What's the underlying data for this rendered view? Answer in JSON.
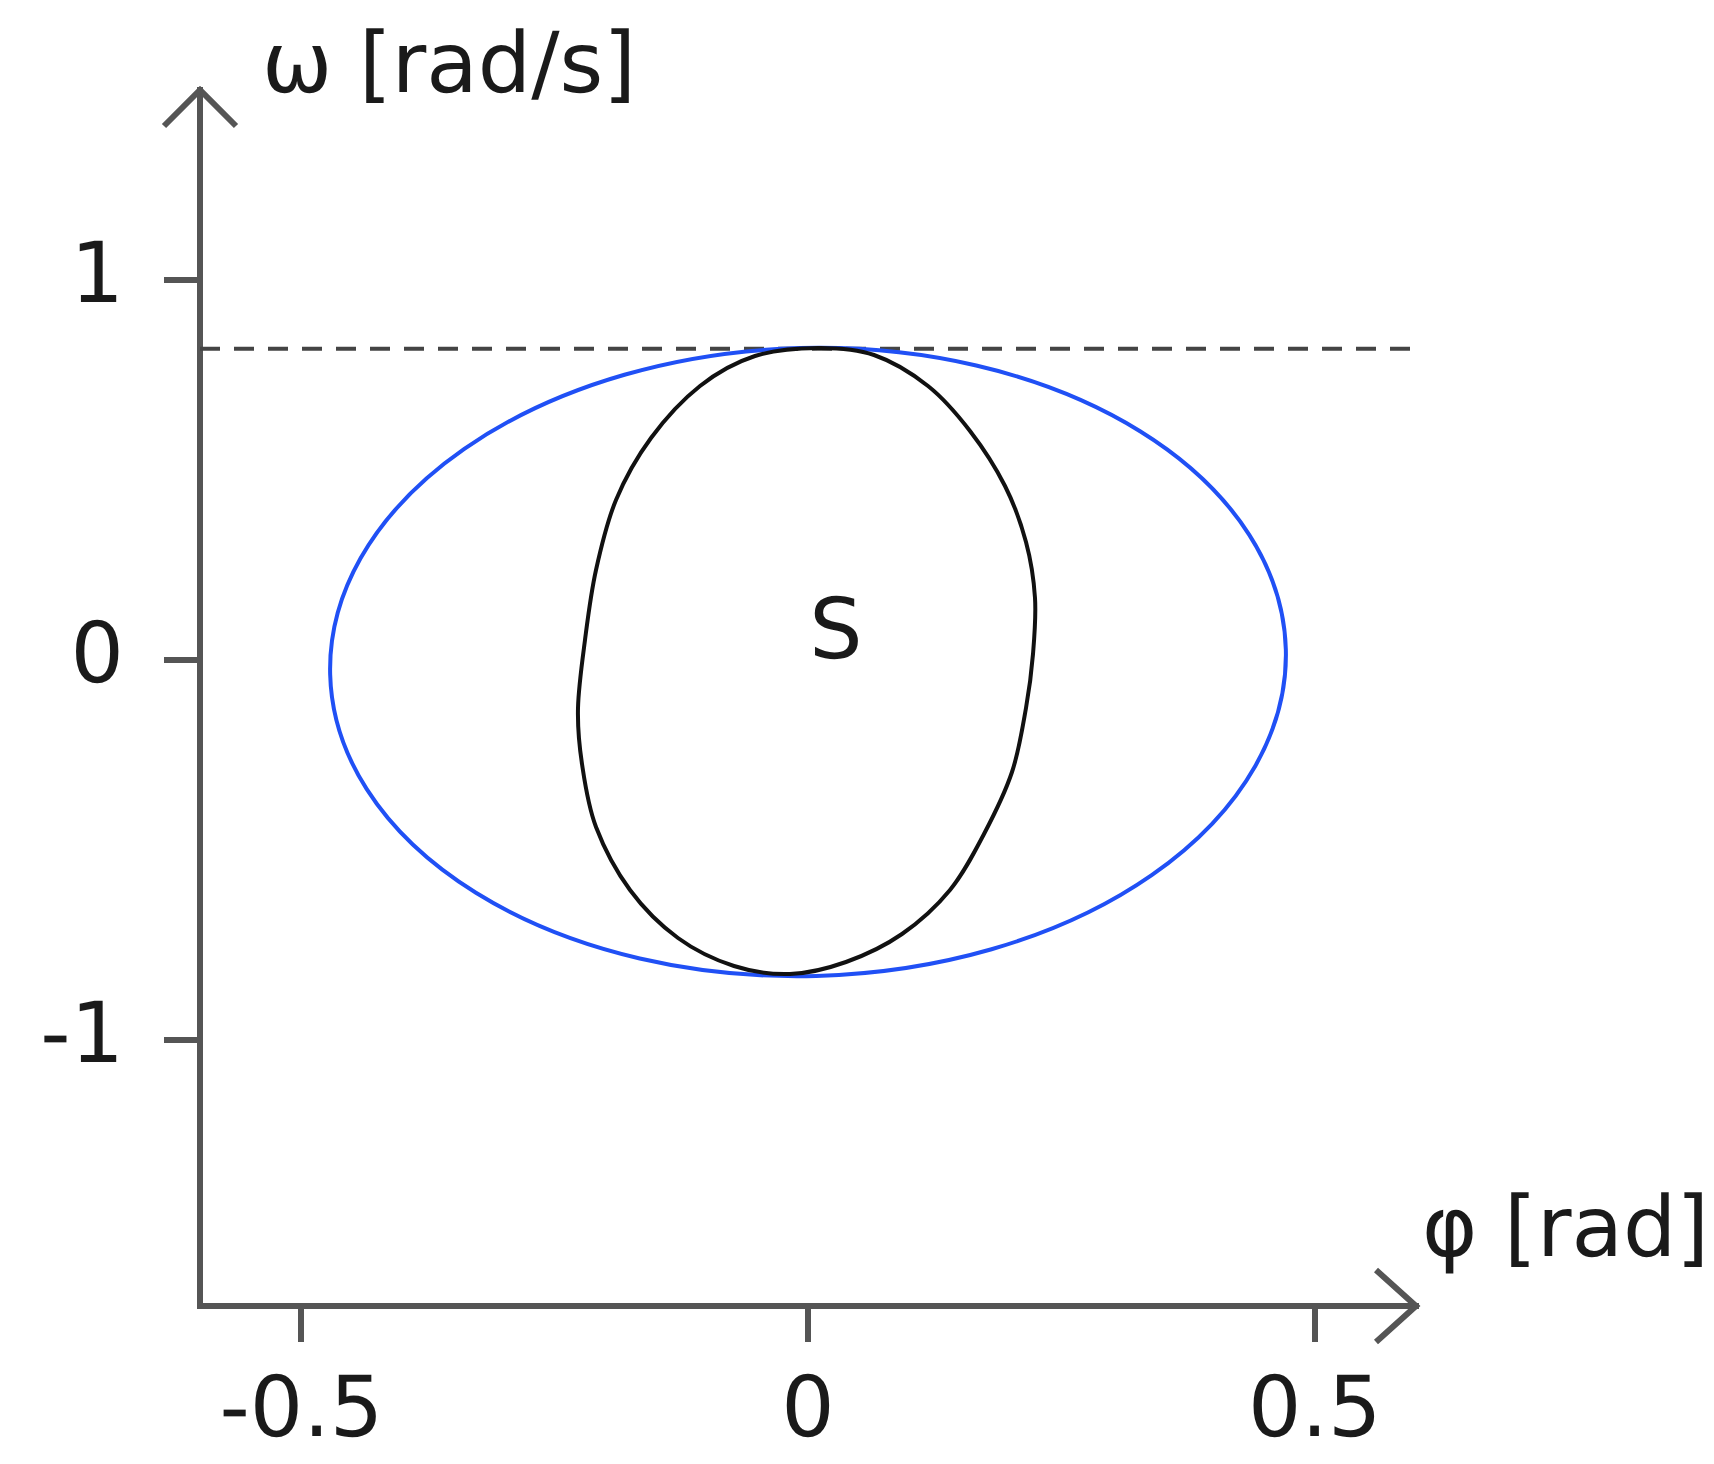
{
  "chart_data": {
    "type": "line",
    "xlabel": "φ [rad]",
    "ylabel": "ω [rad/s]",
    "xlim": [
      -0.6,
      0.6
    ],
    "ylim": [
      -1.7,
      1.5
    ],
    "xticks": [
      -0.5,
      0,
      0.5
    ],
    "yticks": [
      -1,
      0,
      1
    ],
    "ref_lines": [
      {
        "axis": "y",
        "value": 0.82,
        "color": "#444444",
        "line_style": "dashed"
      }
    ],
    "annotations": [
      "S"
    ],
    "grid": false
  }
}
